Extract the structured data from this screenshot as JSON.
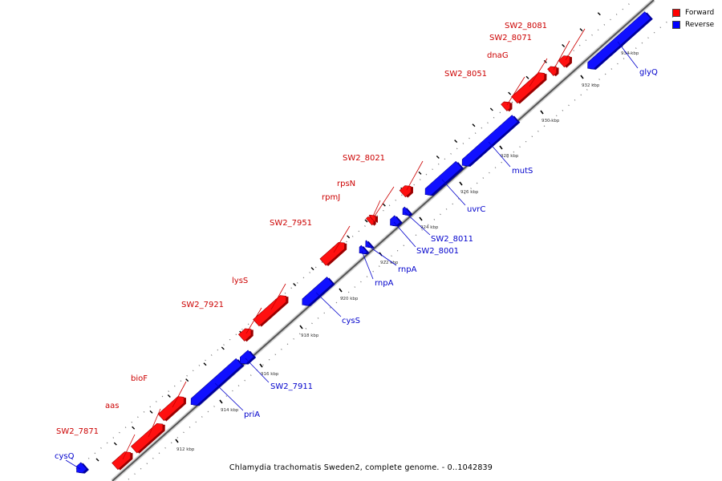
{
  "caption": "Chlamydia trachomatis Sweden2, complete genome. - 0..1042839",
  "legend": [
    {
      "label": "Forward",
      "color": "#ff0000"
    },
    {
      "label": "Reverse",
      "color": "#0000ff"
    }
  ],
  "ticks": [
    "912 kbp",
    "914 kbp",
    "916 kbp",
    "918 kbp",
    "920 kbp",
    "922 kbp",
    "924 kbp",
    "926 kbp",
    "928 kbp",
    "930 kbp",
    "932 kbp",
    "934 kbp"
  ],
  "genes": [
    {
      "name": "cysQ",
      "strand": "reverse"
    },
    {
      "name": "SW2_7871",
      "strand": "forward"
    },
    {
      "name": "aas",
      "strand": "forward"
    },
    {
      "name": "bioF",
      "strand": "forward"
    },
    {
      "name": "priA",
      "strand": "reverse"
    },
    {
      "name": "SW2_7911",
      "strand": "reverse"
    },
    {
      "name": "SW2_7921",
      "strand": "forward"
    },
    {
      "name": "lysS",
      "strand": "forward"
    },
    {
      "name": "cysS",
      "strand": "reverse"
    },
    {
      "name": "SW2_7951",
      "strand": "forward"
    },
    {
      "name": "rnpA",
      "strand": "reverse"
    },
    {
      "name": "rnpA",
      "strand": "reverse"
    },
    {
      "name": "rpmJ",
      "strand": "forward"
    },
    {
      "name": "rpsN",
      "strand": "forward"
    },
    {
      "name": "SW2_8001",
      "strand": "reverse"
    },
    {
      "name": "SW2_8011",
      "strand": "reverse"
    },
    {
      "name": "SW2_8021",
      "strand": "forward"
    },
    {
      "name": "uvrC",
      "strand": "reverse"
    },
    {
      "name": "mutS",
      "strand": "reverse"
    },
    {
      "name": "SW2_8051",
      "strand": "forward"
    },
    {
      "name": "dnaG",
      "strand": "forward"
    },
    {
      "name": "SW2_8071",
      "strand": "forward"
    },
    {
      "name": "SW2_8081",
      "strand": "forward"
    },
    {
      "name": "glyQ",
      "strand": "reverse"
    }
  ]
}
